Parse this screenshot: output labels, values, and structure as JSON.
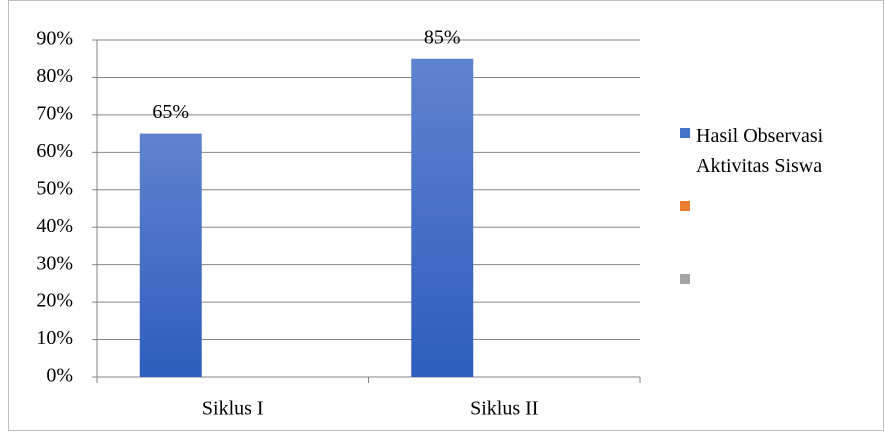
{
  "chart_data": {
    "type": "bar",
    "categories": [
      "Siklus I",
      "Siklus II"
    ],
    "series": [
      {
        "name": "Hasil Observasi Aktivitas Siswa",
        "color": "#4472c4",
        "values": [
          65,
          85
        ],
        "value_labels": [
          "65%",
          "85%"
        ]
      },
      {
        "color": "#ed7d31",
        "values": [
          null,
          null
        ]
      },
      {
        "color": "#a5a5a5",
        "values": [
          null,
          null
        ]
      }
    ],
    "ylim": [
      0,
      90
    ],
    "yticks": [
      {
        "value": 0,
        "label": "0%"
      },
      {
        "value": 10,
        "label": "10%"
      },
      {
        "value": 20,
        "label": "20%"
      },
      {
        "value": 30,
        "label": "30%"
      },
      {
        "value": 40,
        "label": "40%"
      },
      {
        "value": 50,
        "label": "50%"
      },
      {
        "value": 60,
        "label": "60%"
      },
      {
        "value": 70,
        "label": "70%"
      },
      {
        "value": 80,
        "label": "80%"
      },
      {
        "value": 90,
        "label": "90%"
      }
    ],
    "grid": true,
    "legend": "right"
  }
}
